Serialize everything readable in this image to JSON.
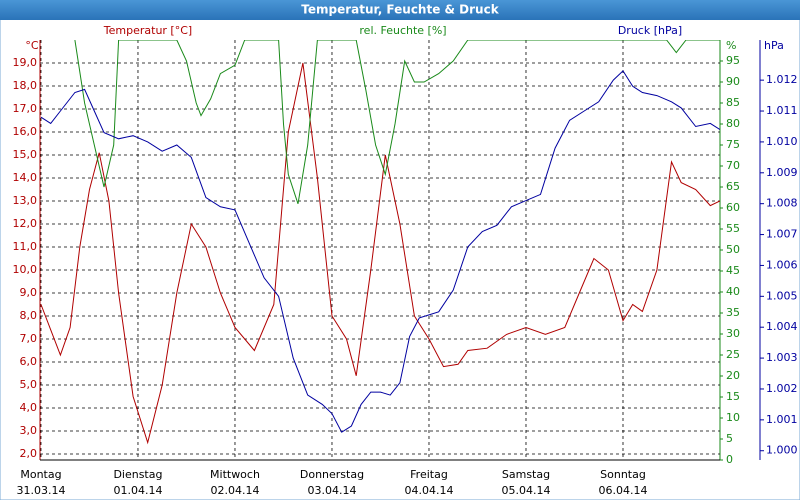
{
  "chart_data": {
    "type": "line",
    "title": "Temperatur, Feuchte & Druck",
    "xlim": [
      -0.01,
      7.0
    ],
    "xticks": [
      {
        "value": 0,
        "label": "31.03.14"
      },
      {
        "value": 1,
        "label": "01.04.14"
      },
      {
        "value": 2,
        "label": "02.04.14"
      },
      {
        "value": 3,
        "label": "03.04.14"
      },
      {
        "value": 4,
        "label": "04.04.14"
      },
      {
        "value": 5,
        "label": "05.04.14"
      },
      {
        "value": 6,
        "label": "06.04.14"
      }
    ],
    "xtick_weekdays": [
      "Montag",
      "Dienstag",
      "Mittwoch",
      "Donnerstag",
      "Freitag",
      "Samstag",
      "Sonntag"
    ],
    "ylabel": "°C",
    "ylim": [
      1.74,
      20
    ],
    "yticks": [
      {
        "value": 2,
        "label": "2,0"
      },
      {
        "value": 3,
        "label": "3,0"
      },
      {
        "value": 4,
        "label": "4,0"
      },
      {
        "value": 5,
        "label": "5,0"
      },
      {
        "value": 6,
        "label": "6,0"
      },
      {
        "value": 7,
        "label": "7,0"
      },
      {
        "value": 8,
        "label": "8,0"
      },
      {
        "value": 9,
        "label": "9,0"
      },
      {
        "value": 10,
        "label": "10,0"
      },
      {
        "value": 11,
        "label": "11,0"
      },
      {
        "value": 12,
        "label": "12,0"
      },
      {
        "value": 13,
        "label": "13,0"
      },
      {
        "value": 14,
        "label": "14,0"
      },
      {
        "value": 15,
        "label": "15,0"
      },
      {
        "value": 16,
        "label": "16,0"
      },
      {
        "value": 17,
        "label": "17,0"
      },
      {
        "value": 18,
        "label": "18,0"
      },
      {
        "value": 19,
        "label": "19,0"
      }
    ],
    "y2label": "%",
    "y2lim": [
      0,
      100
    ],
    "y2ticks": [
      0,
      5,
      10,
      15,
      20,
      25,
      30,
      35,
      40,
      45,
      50,
      55,
      60,
      65,
      70,
      75,
      80,
      85,
      90,
      95
    ],
    "y3label": "hPa",
    "y3lim": [
      999.7,
      1013.3
    ],
    "y3ticks": [
      {
        "value": 1000,
        "label": "1.000"
      },
      {
        "value": 1001,
        "label": "1.001"
      },
      {
        "value": 1002,
        "label": "1.002"
      },
      {
        "value": 1003,
        "label": "1.003"
      },
      {
        "value": 1004,
        "label": "1.004"
      },
      {
        "value": 1005,
        "label": "1.005"
      },
      {
        "value": 1006,
        "label": "1.006"
      },
      {
        "value": 1007,
        "label": "1.007"
      },
      {
        "value": 1008,
        "label": "1.008"
      },
      {
        "value": 1009,
        "label": "1.009"
      },
      {
        "value": 1010,
        "label": "1.010"
      },
      {
        "value": 1011,
        "label": "1.011"
      },
      {
        "value": 1012,
        "label": "1.012"
      }
    ],
    "grid": true,
    "series": [
      {
        "name": "Temperatur [°C]",
        "color": "#b00000",
        "axis": "y",
        "x": [
          0,
          0.1,
          0.2,
          0.3,
          0.4,
          0.5,
          0.6,
          0.7,
          0.8,
          0.95,
          1.1,
          1.25,
          1.4,
          1.55,
          1.7,
          1.85,
          2.0,
          2.2,
          2.4,
          2.55,
          2.7,
          2.85,
          3.0,
          3.15,
          3.25,
          3.4,
          3.55,
          3.7,
          3.85,
          4.0,
          4.15,
          4.3,
          4.4,
          4.6,
          4.8,
          5.0,
          5.2,
          5.4,
          5.55,
          5.7,
          5.85,
          6.0,
          6.1,
          6.2,
          6.35,
          6.5,
          6.6,
          6.75,
          6.9,
          7.0
        ],
        "values": [
          8.5,
          7.4,
          6.3,
          7.5,
          11,
          13.5,
          15.1,
          13,
          9,
          4.5,
          2.5,
          5,
          9,
          12,
          11,
          9,
          7.5,
          6.5,
          8.5,
          16,
          19,
          14,
          8,
          7,
          5.4,
          10,
          15,
          12,
          8,
          7,
          5.8,
          5.9,
          6.5,
          6.6,
          7.2,
          7.5,
          7.2,
          7.5,
          9,
          10.5,
          10,
          7.8,
          8.5,
          8.2,
          10,
          14.7,
          13.8,
          13.5,
          12.8,
          13.0
        ]
      },
      {
        "name": "rel. Feuchte [%]",
        "color": "#1a8a1a",
        "axis": "y2",
        "x": [
          0.35,
          0.45,
          0.55,
          0.65,
          0.75,
          0.8,
          1.0,
          1.2,
          1.4,
          1.5,
          1.6,
          1.65,
          1.75,
          1.85,
          2.0,
          2.1,
          2.3,
          2.45,
          2.5,
          2.55,
          2.65,
          2.75,
          2.85,
          3.0,
          3.25,
          3.35,
          3.45,
          3.55,
          3.65,
          3.75,
          3.85,
          3.95,
          4.1,
          4.25,
          4.4,
          5.0,
          6.0,
          6.45,
          6.55,
          6.65,
          7.0
        ],
        "values": [
          100,
          85,
          75,
          65,
          75,
          100,
          100,
          100,
          100,
          95,
          85,
          82,
          86,
          92,
          94,
          100,
          100,
          100,
          80,
          68,
          61,
          75,
          100,
          100,
          100,
          88,
          75,
          68,
          80,
          95,
          90,
          90,
          92,
          95,
          100,
          100,
          100,
          100,
          97,
          100,
          100
        ]
      },
      {
        "name": "Druck [hPa]",
        "color": "#0000a0",
        "axis": "y3",
        "x": [
          0,
          0.1,
          0.2,
          0.35,
          0.45,
          0.55,
          0.65,
          0.8,
          0.95,
          1.1,
          1.25,
          1.4,
          1.55,
          1.7,
          1.85,
          2.0,
          2.15,
          2.3,
          2.45,
          2.6,
          2.75,
          2.9,
          3.0,
          3.1,
          3.2,
          3.3,
          3.4,
          3.5,
          3.6,
          3.7,
          3.8,
          3.9,
          4.0,
          4.1,
          4.25,
          4.4,
          4.55,
          4.7,
          4.85,
          5.0,
          5.15,
          5.3,
          5.45,
          5.6,
          5.75,
          5.9,
          6.0,
          6.1,
          6.2,
          6.35,
          6.5,
          6.6,
          6.75,
          6.9,
          7.0
        ],
        "values": [
          1010.8,
          1010.6,
          1011.0,
          1011.6,
          1011.7,
          1011.0,
          1010.3,
          1010.1,
          1010.2,
          1010.0,
          1009.7,
          1009.9,
          1009.5,
          1008.2,
          1007.9,
          1007.8,
          1006.7,
          1005.6,
          1005.0,
          1003.0,
          1001.8,
          1001.5,
          1001.2,
          1000.6,
          1000.8,
          1001.5,
          1001.9,
          1001.9,
          1001.8,
          1002.2,
          1003.7,
          1004.3,
          1004.4,
          1004.5,
          1005.2,
          1006.6,
          1007.1,
          1007.3,
          1007.9,
          1008.1,
          1008.3,
          1009.8,
          1010.7,
          1011.0,
          1011.3,
          1012.0,
          1012.3,
          1011.8,
          1011.6,
          1011.5,
          1011.3,
          1011.1,
          1010.5,
          1010.6,
          1010.4
        ]
      }
    ]
  }
}
